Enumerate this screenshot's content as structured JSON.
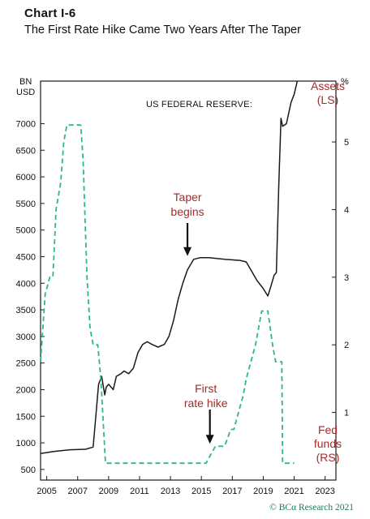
{
  "header": {
    "chart_number": "Chart I-6",
    "title": "The First Rate Hike Came Two Years After The Taper"
  },
  "footer": {
    "source": "© BCα Research 2021"
  },
  "chart_data": {
    "type": "line",
    "title": "US FEDERAL RESERVE:",
    "left_axis": {
      "unit_label": [
        "BN",
        "USD"
      ],
      "ticks": [
        500,
        1000,
        1500,
        2000,
        2500,
        3000,
        3500,
        4000,
        4500,
        5000,
        5500,
        6000,
        6500,
        7000
      ],
      "ylim": [
        300,
        7800
      ]
    },
    "right_axis": {
      "unit_label": "%",
      "ticks": [
        1,
        2,
        3,
        4,
        5
      ],
      "ylim": [
        0,
        5.9
      ]
    },
    "x_axis": {
      "ticks": [
        "2005",
        "2007",
        "2009",
        "2011",
        "2013",
        "2015",
        "2017",
        "2019",
        "2021",
        "2023"
      ],
      "xlim": [
        2004.6,
        2023.7
      ]
    },
    "colors": {
      "assets": "#1a1a1a",
      "fed_funds": "#2db884",
      "annotation": "#a52a2a"
    },
    "series": [
      {
        "name": "Assets (LS)",
        "axis": "left",
        "style": "solid",
        "x": [
          2004.6,
          2005.5,
          2006.5,
          2007.5,
          2008.0,
          2008.35,
          2008.55,
          2008.75,
          2008.85,
          2009.0,
          2009.3,
          2009.5,
          2009.8,
          2010.0,
          2010.3,
          2010.6,
          2010.9,
          2011.2,
          2011.5,
          2011.8,
          2012.2,
          2012.6,
          2012.9,
          2013.2,
          2013.5,
          2013.8,
          2014.1,
          2014.5,
          2014.9,
          2015.5,
          2016.5,
          2017.5,
          2017.9,
          2018.2,
          2018.6,
          2019.0,
          2019.3,
          2019.5,
          2019.7,
          2019.85,
          2020.0,
          2020.15,
          2020.25,
          2020.5,
          2020.8,
          2021.0,
          2021.2
        ],
        "values": [
          800,
          840,
          870,
          880,
          920,
          2100,
          2250,
          1900,
          2050,
          2100,
          2000,
          2250,
          2300,
          2350,
          2300,
          2400,
          2700,
          2850,
          2900,
          2850,
          2800,
          2850,
          3000,
          3300,
          3700,
          4000,
          4250,
          4450,
          4480,
          4480,
          4450,
          4430,
          4400,
          4250,
          4050,
          3900,
          3760,
          3950,
          4150,
          4200,
          5800,
          7100,
          6950,
          7000,
          7400,
          7550,
          7800
        ]
      },
      {
        "name": "Fed funds (RS)",
        "axis": "right",
        "style": "dashed",
        "x": [
          2004.6,
          2004.9,
          2005.2,
          2005.4,
          2005.6,
          2005.9,
          2006.1,
          2006.3,
          2006.6,
          2006.9,
          2007.2,
          2007.35,
          2007.6,
          2007.8,
          2008.0,
          2008.3,
          2008.5,
          2008.8,
          2009.0,
          2010.0,
          2011.0,
          2012.0,
          2013.0,
          2014.0,
          2015.0,
          2015.3,
          2015.9,
          2016.1,
          2016.5,
          2016.9,
          2017.1,
          2017.4,
          2017.7,
          2017.9,
          2018.2,
          2018.5,
          2018.7,
          2018.9,
          2019.3,
          2019.6,
          2019.8,
          2020.2,
          2020.25,
          2021.0
        ],
        "values": [
          1.75,
          2.75,
          3.0,
          3.0,
          4.0,
          4.4,
          5.0,
          5.25,
          5.25,
          5.25,
          5.25,
          4.75,
          3.0,
          2.25,
          2.0,
          2.0,
          1.5,
          0.25,
          0.25,
          0.25,
          0.25,
          0.25,
          0.25,
          0.25,
          0.25,
          0.25,
          0.5,
          0.5,
          0.5,
          0.75,
          0.75,
          1.0,
          1.25,
          1.5,
          1.75,
          2.0,
          2.25,
          2.5,
          2.5,
          2.0,
          1.75,
          1.75,
          0.25,
          0.25
        ]
      }
    ],
    "annotations": [
      {
        "text": [
          "Taper",
          "begins"
        ],
        "x": 2014.1,
        "y": 4480,
        "axis": "left"
      },
      {
        "text": [
          "First",
          "rate hike"
        ],
        "x": 2015.55,
        "y": 0.5,
        "axis": "right"
      },
      {
        "text": [
          "Assets",
          "(LS)"
        ],
        "x": 2021.0,
        "y": 7800,
        "axis": "left"
      },
      {
        "text": [
          "Fed",
          "funds",
          "(RS)"
        ],
        "x": 2021.0,
        "y": 0.25,
        "axis": "right"
      }
    ]
  }
}
